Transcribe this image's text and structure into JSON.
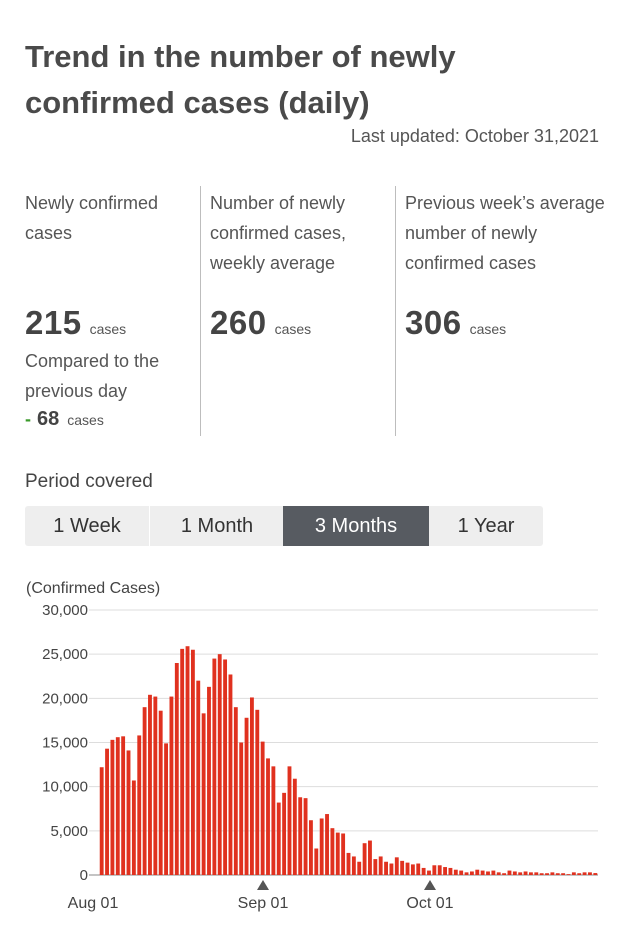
{
  "header": {
    "title": "Trend in the number of newly confirmed cases (daily)",
    "updated": "Last updated: October 31,2021"
  },
  "stats": {
    "daily": {
      "label": "Newly confirmed cases",
      "value": "215",
      "unit": "cases",
      "compare_label": "Compared to the previous day",
      "delta_sign": "-",
      "delta_value": "68",
      "delta_unit": "cases"
    },
    "weekly_avg": {
      "label": "Number of newly confirmed cases, weekly average",
      "value": "260",
      "unit": "cases"
    },
    "prev_week_avg": {
      "label": "Previous week’s average number of newly confirmed cases",
      "value": "306",
      "unit": "cases"
    }
  },
  "period": {
    "label": "Period covered",
    "tabs": [
      "1 Week",
      "1 Month",
      "3 Months",
      "1 Year"
    ],
    "selected": "3 Months"
  },
  "chart_data": {
    "type": "bar",
    "ylabel": "(Confirmed Cases)",
    "ylim": [
      0,
      30000
    ],
    "yticks": [
      0,
      5000,
      10000,
      15000,
      20000,
      25000,
      30000
    ],
    "ytick_labels": [
      "0",
      "5,000",
      "10,000",
      "15,000",
      "20,000",
      "25,000",
      "30,000"
    ],
    "x_tick_labels": [
      "Aug 01",
      "Sep 01",
      "Oct 01"
    ],
    "grid": true,
    "bar_color": "#e0311f",
    "marker_color": "#555555",
    "values": [
      12200,
      14300,
      15300,
      15600,
      15700,
      14100,
      10700,
      15800,
      19000,
      20400,
      20200,
      18600,
      14900,
      20200,
      24000,
      25600,
      25900,
      25500,
      22000,
      18300,
      21300,
      24500,
      25000,
      24400,
      22700,
      19000,
      15000,
      17800,
      20100,
      18700,
      15100,
      13200,
      12300,
      8200,
      9300,
      12300,
      10900,
      8800,
      8700,
      6200,
      3000,
      6400,
      6900,
      5300,
      4800,
      4700,
      2500,
      2100,
      1500,
      3600,
      3900,
      1800,
      2100,
      1500,
      1300,
      2000,
      1600,
      1400,
      1200,
      1300,
      800,
      500,
      1100,
      1100,
      900,
      800,
      600,
      500,
      300,
      400,
      600,
      500,
      400,
      500,
      300,
      200,
      500,
      400,
      300,
      400,
      300,
      300,
      200,
      200,
      300,
      200,
      200,
      100,
      300,
      200,
      300,
      300,
      220
    ]
  }
}
